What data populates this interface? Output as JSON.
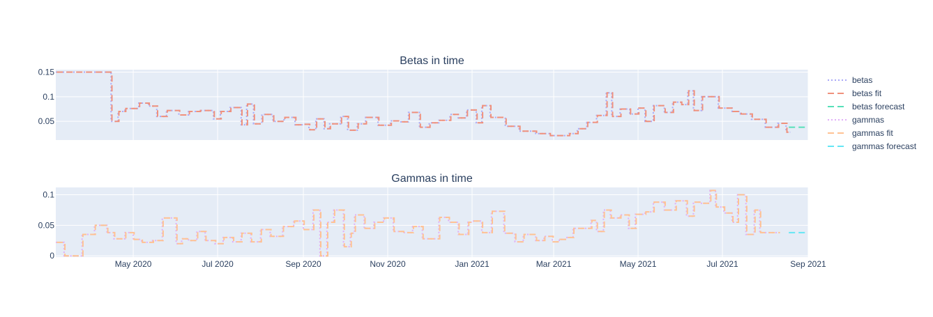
{
  "colors": {
    "plot_bg": "#e5ecf6",
    "grid": "#ffffff",
    "text": "#2a3f5f",
    "betas": "#a9a8f7",
    "betas_fit": "#f0917c",
    "betas_forecast": "#56e0b9",
    "gammas": "#e0aef7",
    "gammas_fit": "#ffc293",
    "gammas_forecast": "#64e6f4"
  },
  "legend": {
    "placement": "right",
    "items": [
      {
        "label": "betas",
        "color_key": "betas",
        "dash": "dot"
      },
      {
        "label": "betas fit",
        "color_key": "betas_fit",
        "dash": "dash"
      },
      {
        "label": "betas forecast",
        "color_key": "betas_forecast",
        "dash": "dash"
      },
      {
        "label": "gammas",
        "color_key": "gammas",
        "dash": "dot"
      },
      {
        "label": "gammas fit",
        "color_key": "gammas_fit",
        "dash": "dash"
      },
      {
        "label": "gammas forecast",
        "color_key": "gammas_forecast",
        "dash": "dash"
      }
    ]
  },
  "chart_data": [
    {
      "type": "line",
      "line_shape": "step",
      "title": "Betas in time",
      "xlabel": "",
      "ylabel": "",
      "x_range": [
        "2020-03-06",
        "2021-09-01"
      ],
      "ylim": [
        0.012,
        0.155
      ],
      "y_ticks": [
        {
          "value": 0.05,
          "label": "0.05"
        },
        {
          "value": 0.1,
          "label": "0.1"
        },
        {
          "value": 0.15,
          "label": "0.15"
        }
      ],
      "x_ticks": [],
      "grid": true,
      "series": [
        {
          "name": "betas",
          "color_key": "betas",
          "dash": "dot",
          "x": [
            "2020-03-06",
            "2020-04-15",
            "2020-04-20",
            "2020-04-25",
            "2020-05-05",
            "2020-05-12",
            "2020-05-18",
            "2020-05-25",
            "2020-06-03",
            "2020-06-10",
            "2020-06-18",
            "2020-06-28",
            "2020-07-03",
            "2020-07-10",
            "2020-07-18",
            "2020-07-22",
            "2020-07-27",
            "2020-08-02",
            "2020-08-10",
            "2020-08-18",
            "2020-08-26",
            "2020-09-01",
            "2020-09-05",
            "2020-09-10",
            "2020-09-16",
            "2020-09-20",
            "2020-09-28",
            "2020-10-03",
            "2020-10-10",
            "2020-10-16",
            "2020-10-25",
            "2020-11-03",
            "2020-11-10",
            "2020-11-16",
            "2020-11-24",
            "2020-12-01",
            "2020-12-08",
            "2020-12-16",
            "2020-12-22",
            "2020-12-28",
            "2021-01-04",
            "2021-01-08",
            "2021-01-14",
            "2021-01-25",
            "2021-02-04",
            "2021-02-16",
            "2021-02-26",
            "2021-03-12",
            "2021-03-18",
            "2021-03-25",
            "2021-04-01",
            "2021-04-08",
            "2021-04-12",
            "2021-04-18",
            "2021-04-25",
            "2021-05-01",
            "2021-05-06",
            "2021-05-12",
            "2021-05-20",
            "2021-05-26",
            "2021-06-01",
            "2021-06-06",
            "2021-06-10",
            "2021-06-16",
            "2021-06-28",
            "2021-07-08",
            "2021-07-14",
            "2021-07-22",
            "2021-08-01",
            "2021-08-10",
            "2021-08-16"
          ],
          "y": [
            0.15,
            0.05,
            0.07,
            0.076,
            0.087,
            0.081,
            0.06,
            0.072,
            0.063,
            0.07,
            0.072,
            0.055,
            0.07,
            0.078,
            0.043,
            0.085,
            0.045,
            0.064,
            0.05,
            0.058,
            0.043,
            0.044,
            0.033,
            0.055,
            0.035,
            0.045,
            0.06,
            0.032,
            0.045,
            0.058,
            0.042,
            0.051,
            0.049,
            0.068,
            0.038,
            0.047,
            0.052,
            0.064,
            0.057,
            0.073,
            0.047,
            0.082,
            0.058,
            0.04,
            0.03,
            0.025,
            0.021,
            0.025,
            0.035,
            0.048,
            0.062,
            0.108,
            0.06,
            0.075,
            0.065,
            0.077,
            0.05,
            0.082,
            0.068,
            0.089,
            0.084,
            0.112,
            0.072,
            0.1,
            0.077,
            0.07,
            0.065,
            0.054,
            0.038,
            0.046,
            0.028
          ]
        },
        {
          "name": "betas fit",
          "color_key": "betas_fit",
          "dash": "dash",
          "x": [
            "2020-03-06",
            "2020-04-15",
            "2020-04-20",
            "2020-04-25",
            "2020-05-05",
            "2020-05-12",
            "2020-05-18",
            "2020-05-25",
            "2020-06-03",
            "2020-06-10",
            "2020-06-18",
            "2020-06-28",
            "2020-07-03",
            "2020-07-10",
            "2020-07-18",
            "2020-07-22",
            "2020-07-27",
            "2020-08-02",
            "2020-08-10",
            "2020-08-18",
            "2020-08-26",
            "2020-09-01",
            "2020-09-05",
            "2020-09-10",
            "2020-09-16",
            "2020-09-20",
            "2020-09-28",
            "2020-10-03",
            "2020-10-10",
            "2020-10-16",
            "2020-10-25",
            "2020-11-03",
            "2020-11-10",
            "2020-11-16",
            "2020-11-24",
            "2020-12-01",
            "2020-12-08",
            "2020-12-16",
            "2020-12-22",
            "2020-12-28",
            "2021-01-04",
            "2021-01-08",
            "2021-01-14",
            "2021-01-25",
            "2021-02-04",
            "2021-02-16",
            "2021-02-26",
            "2021-03-12",
            "2021-03-18",
            "2021-03-25",
            "2021-04-01",
            "2021-04-08",
            "2021-04-12",
            "2021-04-18",
            "2021-04-25",
            "2021-05-01",
            "2021-05-06",
            "2021-05-12",
            "2021-05-20",
            "2021-05-26",
            "2021-06-01",
            "2021-06-06",
            "2021-06-10",
            "2021-06-16",
            "2021-06-28",
            "2021-07-08",
            "2021-07-14",
            "2021-07-22",
            "2021-08-01",
            "2021-08-10",
            "2021-08-16"
          ],
          "y": [
            0.15,
            0.05,
            0.07,
            0.076,
            0.087,
            0.081,
            0.06,
            0.072,
            0.063,
            0.07,
            0.072,
            0.055,
            0.07,
            0.078,
            0.043,
            0.085,
            0.045,
            0.064,
            0.05,
            0.058,
            0.043,
            0.044,
            0.033,
            0.055,
            0.035,
            0.045,
            0.06,
            0.032,
            0.045,
            0.058,
            0.042,
            0.051,
            0.049,
            0.068,
            0.038,
            0.047,
            0.052,
            0.064,
            0.057,
            0.073,
            0.047,
            0.082,
            0.058,
            0.04,
            0.03,
            0.025,
            0.021,
            0.025,
            0.035,
            0.048,
            0.062,
            0.108,
            0.06,
            0.075,
            0.065,
            0.077,
            0.05,
            0.082,
            0.068,
            0.089,
            0.084,
            0.112,
            0.072,
            0.1,
            0.077,
            0.07,
            0.065,
            0.054,
            0.038,
            0.046,
            0.028
          ]
        },
        {
          "name": "betas forecast",
          "color_key": "betas_forecast",
          "dash": "dash",
          "x": [
            "2021-08-18",
            "2021-09-01"
          ],
          "y": [
            0.038,
            0.038
          ]
        }
      ]
    },
    {
      "type": "line",
      "line_shape": "step",
      "title": "Gammas in time",
      "xlabel": "",
      "ylabel": "",
      "x_range": [
        "2020-03-06",
        "2021-09-01"
      ],
      "ylim": [
        -0.002,
        0.112
      ],
      "y_ticks": [
        {
          "value": 0,
          "label": "0"
        },
        {
          "value": 0.05,
          "label": "0.05"
        },
        {
          "value": 0.1,
          "label": "0.1"
        }
      ],
      "x_ticks": [
        {
          "value": "2020-05-01",
          "label": "May 2020"
        },
        {
          "value": "2020-07-01",
          "label": "Jul 2020"
        },
        {
          "value": "2020-09-01",
          "label": "Sep 2020"
        },
        {
          "value": "2020-11-01",
          "label": "Nov 2020"
        },
        {
          "value": "2021-01-01",
          "label": "Jan 2021"
        },
        {
          "value": "2021-03-01",
          "label": "Mar 2021"
        },
        {
          "value": "2021-05-01",
          "label": "May 2021"
        },
        {
          "value": "2021-07-01",
          "label": "Jul 2021"
        },
        {
          "value": "2021-09-01",
          "label": "Sep 2021"
        }
      ],
      "grid": true,
      "series": [
        {
          "name": "gammas",
          "color_key": "gammas",
          "dash": "dot",
          "x": [
            "2020-03-06",
            "2020-03-12",
            "2020-03-25",
            "2020-04-03",
            "2020-04-12",
            "2020-04-17",
            "2020-04-25",
            "2020-05-01",
            "2020-05-07",
            "2020-05-15",
            "2020-05-22",
            "2020-06-01",
            "2020-06-05",
            "2020-06-10",
            "2020-06-16",
            "2020-06-22",
            "2020-06-29",
            "2020-07-05",
            "2020-07-12",
            "2020-07-18",
            "2020-07-25",
            "2020-08-01",
            "2020-08-08",
            "2020-08-17",
            "2020-08-25",
            "2020-09-01",
            "2020-09-08",
            "2020-09-13",
            "2020-09-18",
            "2020-09-23",
            "2020-09-30",
            "2020-10-05",
            "2020-10-08",
            "2020-10-15",
            "2020-10-22",
            "2020-10-29",
            "2020-11-05",
            "2020-11-12",
            "2020-11-19",
            "2020-11-26",
            "2020-12-08",
            "2020-12-15",
            "2020-12-22",
            "2020-12-29",
            "2021-01-02",
            "2021-01-08",
            "2021-01-15",
            "2021-01-24",
            "2021-02-01",
            "2021-02-07",
            "2021-02-16",
            "2021-02-22",
            "2021-02-28",
            "2021-03-05",
            "2021-03-10",
            "2021-03-15",
            "2021-03-28",
            "2021-04-01",
            "2021-04-06",
            "2021-04-11",
            "2021-04-18",
            "2021-04-24",
            "2021-04-29",
            "2021-05-06",
            "2021-05-12",
            "2021-05-20",
            "2021-05-28",
            "2021-06-05",
            "2021-06-10",
            "2021-06-15",
            "2021-06-22",
            "2021-06-26",
            "2021-07-02",
            "2021-07-08",
            "2021-07-12",
            "2021-07-18",
            "2021-07-24",
            "2021-07-28",
            "2021-08-01",
            "2021-08-08"
          ],
          "y": [
            0.022,
            0,
            0.035,
            0.05,
            0.038,
            0.028,
            0.038,
            0.027,
            0.022,
            0.025,
            0.062,
            0.02,
            0.028,
            0.025,
            0.04,
            0.025,
            0.02,
            0.03,
            0.023,
            0.037,
            0.023,
            0.043,
            0.032,
            0.048,
            0.057,
            0.043,
            0.075,
            0,
            0.055,
            0.075,
            0.015,
            0.037,
            0.067,
            0.045,
            0.055,
            0.062,
            0.04,
            0.038,
            0.048,
            0.028,
            0.063,
            0.055,
            0.035,
            0.055,
            0.057,
            0.038,
            0.073,
            0.037,
            0.023,
            0.035,
            0.025,
            0.032,
            0.023,
            0.027,
            0.03,
            0.045,
            0.058,
            0.04,
            0.075,
            0.062,
            0.067,
            0.045,
            0.068,
            0.072,
            0.088,
            0.075,
            0.09,
            0.065,
            0.088,
            0.086,
            0.107,
            0.08,
            0.07,
            0.055,
            0.1,
            0.035,
            0.075,
            0.038,
            0.038,
            0.038
          ]
        },
        {
          "name": "gammas fit",
          "color_key": "gammas_fit",
          "dash": "dash",
          "x": [
            "2020-03-06",
            "2020-03-12",
            "2020-03-25",
            "2020-04-03",
            "2020-04-12",
            "2020-04-17",
            "2020-04-25",
            "2020-05-01",
            "2020-05-07",
            "2020-05-15",
            "2020-05-22",
            "2020-06-01",
            "2020-06-05",
            "2020-06-10",
            "2020-06-16",
            "2020-06-22",
            "2020-06-29",
            "2020-07-05",
            "2020-07-12",
            "2020-07-18",
            "2020-07-25",
            "2020-08-01",
            "2020-08-08",
            "2020-08-17",
            "2020-08-25",
            "2020-09-01",
            "2020-09-08",
            "2020-09-13",
            "2020-09-18",
            "2020-09-23",
            "2020-09-30",
            "2020-10-05",
            "2020-10-08",
            "2020-10-15",
            "2020-10-22",
            "2020-10-29",
            "2020-11-05",
            "2020-11-12",
            "2020-11-19",
            "2020-11-26",
            "2020-12-08",
            "2020-12-15",
            "2020-12-22",
            "2020-12-29",
            "2021-01-02",
            "2021-01-08",
            "2021-01-15",
            "2021-01-24",
            "2021-02-01",
            "2021-02-07",
            "2021-02-16",
            "2021-02-22",
            "2021-02-28",
            "2021-03-05",
            "2021-03-10",
            "2021-03-15",
            "2021-03-28",
            "2021-04-01",
            "2021-04-06",
            "2021-04-11",
            "2021-04-18",
            "2021-04-24",
            "2021-04-29",
            "2021-05-06",
            "2021-05-12",
            "2021-05-20",
            "2021-05-28",
            "2021-06-05",
            "2021-06-10",
            "2021-06-15",
            "2021-06-22",
            "2021-06-26",
            "2021-07-02",
            "2021-07-08",
            "2021-07-12",
            "2021-07-18",
            "2021-07-24",
            "2021-07-28",
            "2021-08-01",
            "2021-08-08"
          ],
          "y": [
            0.022,
            0,
            0.035,
            0.05,
            0.038,
            0.028,
            0.038,
            0.027,
            0.022,
            0.025,
            0.062,
            0.02,
            0.028,
            0.025,
            0.04,
            0.025,
            0.02,
            0.03,
            0.023,
            0.037,
            0.023,
            0.043,
            0.032,
            0.048,
            0.057,
            0.043,
            0.075,
            0,
            0.055,
            0.075,
            0.015,
            0.037,
            0.067,
            0.045,
            0.055,
            0.062,
            0.04,
            0.038,
            0.048,
            0.028,
            0.063,
            0.055,
            0.035,
            0.055,
            0.057,
            0.038,
            0.073,
            0.037,
            0.023,
            0.035,
            0.025,
            0.032,
            0.023,
            0.027,
            0.03,
            0.045,
            0.058,
            0.04,
            0.075,
            0.062,
            0.067,
            0.045,
            0.068,
            0.072,
            0.088,
            0.075,
            0.09,
            0.065,
            0.088,
            0.086,
            0.107,
            0.08,
            0.07,
            0.055,
            0.1,
            0.035,
            0.075,
            0.038,
            0.038,
            0.038
          ]
        },
        {
          "name": "gammas forecast",
          "color_key": "gammas_forecast",
          "dash": "dash",
          "x": [
            "2021-08-18",
            "2021-09-01"
          ],
          "y": [
            0.038,
            0.038
          ]
        }
      ]
    }
  ]
}
